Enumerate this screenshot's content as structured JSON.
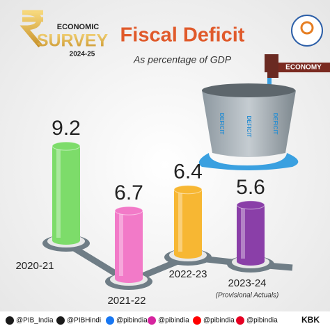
{
  "chart_data": {
    "type": "bar",
    "title": "Fiscal Deficit",
    "subtitle": "As percentage of GDP",
    "categories": [
      "2020-21",
      "2021-22",
      "2022-23",
      "2023-24"
    ],
    "category_notes": [
      null,
      null,
      null,
      "(Provisional Actuals)"
    ],
    "values": [
      9.2,
      6.7,
      6.4,
      5.6
    ],
    "colors": [
      "#7ddc6a",
      "#f27ac8",
      "#f7b733",
      "#8a3fa8"
    ]
  },
  "branding": {
    "logo_top": "ECONOMIC",
    "logo_main": "SURVEY",
    "logo_year": "2024-25",
    "pipe_label": "ECONOMY",
    "bucket_label": "DEFICIT",
    "signature": "KBK",
    "handles": [
      "@PIB_India",
      "@PIBHindi",
      "@pibindia",
      "@pibindia",
      "@pibindia",
      "@pibindia"
    ]
  }
}
